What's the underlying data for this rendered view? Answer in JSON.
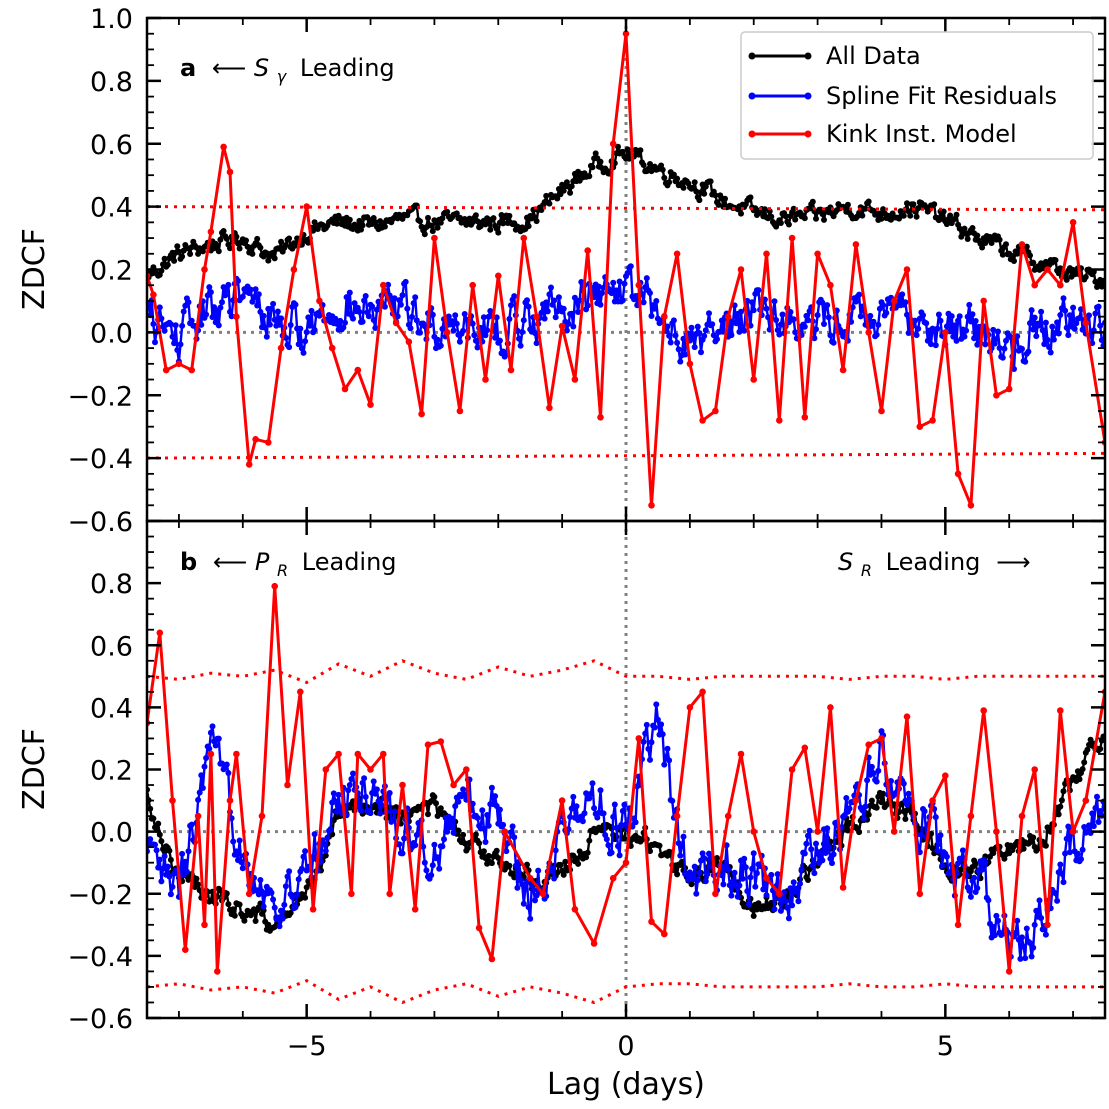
{
  "chart_data": [
    {
      "type": "line",
      "panel_label": "a",
      "annotation_left": "⟵",
      "annotation_left_math": "S",
      "annotation_left_sub": "γ",
      "annotation_left_suffix": "Leading",
      "ylabel": "ZDCF",
      "xlim": [
        -7.5,
        7.5
      ],
      "ylim": [
        -0.6,
        1.0
      ],
      "yticks": [
        "−0.6",
        "−0.4",
        "−0.2",
        "0.0",
        "0.2",
        "0.4",
        "0.6",
        "0.8",
        "1.0"
      ],
      "ytick_values": [
        -0.6,
        -0.4,
        -0.2,
        0.0,
        0.2,
        0.4,
        0.6,
        0.8,
        1.0
      ],
      "legend": [
        "All Data",
        "Spline Fit Residuals",
        "Kink Inst. Model"
      ],
      "legend_position": "top-right",
      "series": [
        {
          "name": "All Data",
          "color": "#000000",
          "noise": 0.025,
          "x": [
            -7.5,
            -7.0,
            -6.5,
            -6.0,
            -5.5,
            -5.0,
            -4.5,
            -4.0,
            -3.5,
            -3.0,
            -2.5,
            -2.0,
            -1.5,
            -1.0,
            -0.5,
            0.0,
            0.5,
            1.0,
            1.5,
            2.0,
            2.5,
            3.0,
            3.5,
            4.0,
            4.5,
            5.0,
            5.5,
            6.0,
            6.5,
            7.0,
            7.5
          ],
          "y": [
            0.18,
            0.25,
            0.28,
            0.3,
            0.24,
            0.32,
            0.35,
            0.34,
            0.36,
            0.35,
            0.35,
            0.35,
            0.36,
            0.45,
            0.53,
            0.57,
            0.52,
            0.48,
            0.42,
            0.38,
            0.36,
            0.37,
            0.4,
            0.38,
            0.4,
            0.36,
            0.3,
            0.26,
            0.22,
            0.18,
            0.17
          ]
        },
        {
          "name": "Spline Fit Residuals",
          "color": "#0000ff",
          "noise": 0.06,
          "x": [
            -7.5,
            -7.0,
            -6.5,
            -6.0,
            -5.5,
            -5.0,
            -4.5,
            -4.0,
            -3.5,
            -3.0,
            -2.5,
            -2.0,
            -1.5,
            -1.0,
            -0.5,
            0.0,
            0.5,
            1.0,
            1.5,
            2.0,
            2.5,
            3.0,
            3.5,
            4.0,
            4.5,
            5.0,
            5.5,
            6.0,
            6.5,
            7.0,
            7.5
          ],
          "y": [
            0.05,
            -0.02,
            0.08,
            0.1,
            0.05,
            0.0,
            0.1,
            0.05,
            0.08,
            0.02,
            0.05,
            0.0,
            0.05,
            0.08,
            0.12,
            0.15,
            0.05,
            -0.03,
            0.0,
            0.1,
            0.05,
            0.02,
            0.05,
            0.03,
            0.05,
            0.02,
            0.0,
            -0.05,
            0.03,
            0.05,
            0.02
          ]
        },
        {
          "name": "Kink Inst. Model",
          "color": "#ff0000",
          "x": [
            -7.5,
            -7.4,
            -7.2,
            -7.0,
            -6.8,
            -6.6,
            -6.5,
            -6.3,
            -6.2,
            -6.1,
            -5.9,
            -5.8,
            -5.6,
            -5.4,
            -5.2,
            -5.0,
            -4.8,
            -4.6,
            -4.4,
            -4.2,
            -4.0,
            -3.8,
            -3.6,
            -3.4,
            -3.2,
            -3.0,
            -2.8,
            -2.6,
            -2.4,
            -2.2,
            -2.0,
            -1.8,
            -1.6,
            -1.4,
            -1.2,
            -1.0,
            -0.8,
            -0.6,
            -0.4,
            -0.2,
            0.0,
            0.2,
            0.4,
            0.6,
            0.8,
            1.0,
            1.2,
            1.4,
            1.6,
            1.8,
            2.0,
            2.2,
            2.4,
            2.6,
            2.8,
            3.0,
            3.2,
            3.4,
            3.6,
            3.8,
            4.0,
            4.2,
            4.4,
            4.6,
            4.8,
            5.0,
            5.2,
            5.4,
            5.6,
            5.8,
            6.0,
            6.2,
            6.4,
            6.6,
            6.8,
            7.0,
            7.2,
            7.5
          ],
          "y": [
            0.18,
            0.12,
            -0.12,
            -0.1,
            -0.12,
            0.2,
            0.32,
            0.59,
            0.51,
            0.05,
            -0.42,
            -0.34,
            -0.35,
            -0.05,
            0.2,
            0.4,
            0.1,
            -0.05,
            -0.18,
            -0.12,
            -0.23,
            0.15,
            0.03,
            -0.03,
            -0.26,
            0.3,
            0.0,
            -0.25,
            0.15,
            -0.15,
            0.18,
            -0.12,
            0.3,
            0.05,
            -0.24,
            0.02,
            -0.15,
            0.26,
            -0.27,
            0.6,
            0.95,
            0.15,
            -0.55,
            0.05,
            0.25,
            -0.1,
            -0.28,
            -0.25,
            0.05,
            0.2,
            -0.15,
            0.25,
            -0.28,
            0.3,
            -0.27,
            0.25,
            0.15,
            -0.12,
            0.28,
            0.0,
            -0.25,
            0.1,
            0.2,
            -0.3,
            -0.28,
            0.0,
            -0.45,
            -0.55,
            0.1,
            -0.2,
            -0.18,
            0.28,
            0.15,
            0.2,
            0.15,
            0.35,
            0.03,
            -0.35
          ]
        },
        {
          "name": "",
          "color": "#ff0000",
          "dotted": true,
          "x": [
            -7.5,
            7.5
          ],
          "y": [
            0.4,
            0.39
          ]
        },
        {
          "name": "",
          "color": "#ff0000",
          "dotted": true,
          "x": [
            -7.5,
            7.5
          ],
          "y": [
            -0.4,
            -0.385
          ]
        }
      ]
    },
    {
      "type": "line",
      "panel_label": "b",
      "annotation_left": "⟵",
      "annotation_left_math": "P",
      "annotation_left_sub": "R",
      "annotation_left_suffix": "Leading",
      "annotation_right_math": "S",
      "annotation_right_sub": "R",
      "annotation_right_suffix": "Leading",
      "annotation_right_arrow": "⟶",
      "ylabel": "ZDCF",
      "xlabel": "Lag (days)",
      "xlim": [
        -7.5,
        7.5
      ],
      "ylim": [
        -0.6,
        1.0
      ],
      "xticks": [
        "−5",
        "0",
        "5"
      ],
      "xtick_values": [
        -5,
        0,
        5
      ],
      "yticks": [
        "−0.6",
        "−0.4",
        "−0.2",
        "0.0",
        "0.2",
        "0.4",
        "0.6",
        "0.8"
      ],
      "ytick_values": [
        -0.6,
        -0.4,
        -0.2,
        0.0,
        0.2,
        0.4,
        0.6,
        0.8
      ],
      "series": [
        {
          "name": "All Data",
          "color": "#000000",
          "noise": 0.03,
          "x": [
            -7.5,
            -7.0,
            -6.5,
            -6.0,
            -5.5,
            -5.0,
            -4.5,
            -4.0,
            -3.5,
            -3.0,
            -2.5,
            -2.0,
            -1.5,
            -1.0,
            -0.5,
            0.0,
            0.5,
            1.0,
            1.5,
            2.0,
            2.5,
            3.0,
            3.5,
            4.0,
            4.5,
            5.0,
            5.5,
            6.0,
            6.5,
            7.0,
            7.5
          ],
          "y": [
            0.12,
            -0.15,
            -0.2,
            -0.25,
            -0.3,
            -0.2,
            0.05,
            0.1,
            0.05,
            0.08,
            -0.05,
            -0.08,
            -0.15,
            -0.12,
            -0.02,
            0.0,
            -0.05,
            -0.15,
            -0.1,
            -0.25,
            -0.2,
            -0.1,
            0.02,
            0.1,
            0.05,
            -0.1,
            -0.12,
            -0.05,
            -0.02,
            0.15,
            0.35
          ]
        },
        {
          "name": "Spline Fit Residuals",
          "color": "#0000ff",
          "noise": 0.07,
          "x": [
            -7.5,
            -7.0,
            -6.5,
            -6.0,
            -5.5,
            -5.0,
            -4.5,
            -4.0,
            -3.5,
            -3.0,
            -2.5,
            -2.0,
            -1.5,
            -1.0,
            -0.5,
            0.0,
            0.5,
            1.0,
            1.5,
            2.0,
            2.5,
            3.0,
            3.5,
            4.0,
            4.5,
            5.0,
            5.5,
            6.0,
            6.5,
            7.0,
            7.5
          ],
          "y": [
            -0.1,
            -0.2,
            0.25,
            -0.05,
            -0.25,
            -0.15,
            0.1,
            0.15,
            0.0,
            -0.05,
            0.1,
            0.05,
            -0.2,
            0.0,
            0.1,
            0.0,
            0.35,
            -0.2,
            -0.1,
            -0.15,
            -0.25,
            -0.05,
            0.05,
            0.25,
            0.1,
            -0.1,
            -0.15,
            -0.35,
            -0.3,
            -0.05,
            0.05
          ]
        },
        {
          "name": "Kink Inst. Model",
          "color": "#ff0000",
          "x": [
            -7.5,
            -7.3,
            -7.1,
            -6.9,
            -6.7,
            -6.6,
            -6.5,
            -6.4,
            -6.2,
            -6.1,
            -5.9,
            -5.7,
            -5.5,
            -5.3,
            -5.1,
            -4.9,
            -4.7,
            -4.5,
            -4.3,
            -4.2,
            -4.0,
            -3.8,
            -3.7,
            -3.5,
            -3.3,
            -3.1,
            -2.9,
            -2.7,
            -2.5,
            -2.3,
            -2.1,
            -1.9,
            -1.5,
            -1.3,
            -1.0,
            -0.8,
            -0.5,
            -0.2,
            0.0,
            0.2,
            0.4,
            0.6,
            0.8,
            1.0,
            1.2,
            1.4,
            1.6,
            1.8,
            2.0,
            2.2,
            2.4,
            2.6,
            2.8,
            3.0,
            3.2,
            3.4,
            3.6,
            3.8,
            4.0,
            4.2,
            4.4,
            4.6,
            4.8,
            5.0,
            5.2,
            5.4,
            5.6,
            5.8,
            6.0,
            6.2,
            6.4,
            6.6,
            6.8,
            7.0,
            7.2,
            7.5
          ],
          "y": [
            0.35,
            0.64,
            0.1,
            -0.38,
            0.05,
            -0.3,
            0.25,
            -0.45,
            0.1,
            0.25,
            -0.2,
            0.05,
            0.79,
            0.15,
            0.45,
            -0.25,
            0.2,
            0.25,
            -0.2,
            0.25,
            0.2,
            0.25,
            -0.2,
            0.15,
            -0.25,
            0.28,
            0.29,
            0.15,
            0.2,
            -0.31,
            -0.41,
            0.0,
            -0.15,
            -0.2,
            0.1,
            -0.25,
            -0.36,
            -0.15,
            -0.1,
            0.3,
            -0.29,
            -0.33,
            0.05,
            0.4,
            0.45,
            -0.2,
            0.05,
            0.25,
            0.0,
            -0.15,
            -0.2,
            0.2,
            0.27,
            0.0,
            0.4,
            -0.18,
            0.1,
            0.28,
            0.3,
            0.0,
            0.37,
            -0.2,
            0.1,
            0.18,
            -0.3,
            0.05,
            0.39,
            0.0,
            -0.45,
            0.05,
            0.2,
            -0.3,
            0.39,
            0.0,
            0.1,
            0.45
          ]
        },
        {
          "name": "",
          "color": "#ff0000",
          "dotted": true,
          "x": [
            -7.5,
            -7.0,
            -6.5,
            -6.0,
            -5.5,
            -5.0,
            -4.5,
            -4.0,
            -3.5,
            -3.0,
            -2.5,
            -2.0,
            -1.5,
            -1.0,
            -0.5,
            0.0,
            0.5,
            1.0,
            1.5,
            2.0,
            2.5,
            3.0,
            3.5,
            4.0,
            4.5,
            5.0,
            5.5,
            6.0,
            6.5,
            7.0,
            7.5
          ],
          "y": [
            0.5,
            0.49,
            0.51,
            0.5,
            0.52,
            0.48,
            0.54,
            0.5,
            0.55,
            0.51,
            0.49,
            0.53,
            0.5,
            0.52,
            0.55,
            0.5,
            0.5,
            0.49,
            0.5,
            0.5,
            0.5,
            0.5,
            0.49,
            0.5,
            0.5,
            0.49,
            0.5,
            0.5,
            0.5,
            0.5,
            0.5
          ]
        },
        {
          "name": "",
          "color": "#ff0000",
          "dotted": true,
          "x": [
            -7.5,
            -7.0,
            -6.5,
            -6.0,
            -5.5,
            -5.0,
            -4.5,
            -4.0,
            -3.5,
            -3.0,
            -2.5,
            -2.0,
            -1.5,
            -1.0,
            -0.5,
            0.0,
            0.5,
            1.0,
            1.5,
            2.0,
            2.5,
            3.0,
            3.5,
            4.0,
            4.5,
            5.0,
            5.5,
            6.0,
            6.5,
            7.0,
            7.5
          ],
          "y": [
            -0.5,
            -0.49,
            -0.51,
            -0.5,
            -0.52,
            -0.48,
            -0.54,
            -0.5,
            -0.55,
            -0.51,
            -0.49,
            -0.53,
            -0.5,
            -0.52,
            -0.55,
            -0.5,
            -0.49,
            -0.49,
            -0.5,
            -0.5,
            -0.5,
            -0.5,
            -0.49,
            -0.5,
            -0.5,
            -0.49,
            -0.5,
            -0.5,
            -0.5,
            -0.5,
            -0.5
          ]
        }
      ]
    }
  ]
}
